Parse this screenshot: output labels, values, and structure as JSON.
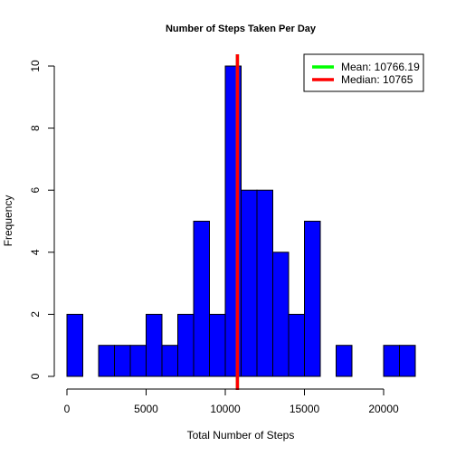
{
  "chart_data": {
    "type": "bar",
    "title": "Number of Steps Taken Per Day",
    "xlabel": "Total Number of Steps",
    "ylabel": "Frequency",
    "xlim": [
      0,
      22000
    ],
    "ylim": [
      0,
      10
    ],
    "bin_width": 1000,
    "bins": [
      {
        "start": 0,
        "end": 1000,
        "count": 2
      },
      {
        "start": 1000,
        "end": 2000,
        "count": 0
      },
      {
        "start": 2000,
        "end": 3000,
        "count": 1
      },
      {
        "start": 3000,
        "end": 4000,
        "count": 1
      },
      {
        "start": 4000,
        "end": 5000,
        "count": 1
      },
      {
        "start": 5000,
        "end": 6000,
        "count": 2
      },
      {
        "start": 6000,
        "end": 7000,
        "count": 1
      },
      {
        "start": 7000,
        "end": 8000,
        "count": 2
      },
      {
        "start": 8000,
        "end": 9000,
        "count": 5
      },
      {
        "start": 9000,
        "end": 10000,
        "count": 2
      },
      {
        "start": 10000,
        "end": 11000,
        "count": 10
      },
      {
        "start": 11000,
        "end": 12000,
        "count": 6
      },
      {
        "start": 12000,
        "end": 13000,
        "count": 6
      },
      {
        "start": 13000,
        "end": 14000,
        "count": 4
      },
      {
        "start": 14000,
        "end": 15000,
        "count": 2
      },
      {
        "start": 15000,
        "end": 16000,
        "count": 5
      },
      {
        "start": 16000,
        "end": 17000,
        "count": 0
      },
      {
        "start": 17000,
        "end": 18000,
        "count": 1
      },
      {
        "start": 18000,
        "end": 19000,
        "count": 0
      },
      {
        "start": 19000,
        "end": 20000,
        "count": 0
      },
      {
        "start": 20000,
        "end": 21000,
        "count": 1
      },
      {
        "start": 21000,
        "end": 22000,
        "count": 1
      }
    ],
    "x_ticks": [
      0,
      5000,
      10000,
      15000,
      20000
    ],
    "x_tick_labels": [
      "0",
      "5000",
      "10000",
      "15000",
      "20000"
    ],
    "y_ticks": [
      0,
      2,
      4,
      6,
      8,
      10
    ],
    "y_tick_labels": [
      "0",
      "2",
      "4",
      "6",
      "8",
      "10"
    ],
    "bar_color": "#0000ff",
    "bar_edge_color": "#000000",
    "vlines": [
      {
        "name": "Mean",
        "value": 10766.19,
        "color": "#00ff00"
      },
      {
        "name": "Median",
        "value": 10765,
        "color": "#ff0000"
      }
    ],
    "legend": {
      "placement": "top-right",
      "entries": [
        {
          "label": "Mean:  10766.19",
          "color": "#00ff00"
        },
        {
          "label": "Median:  10765",
          "color": "#ff0000"
        }
      ]
    },
    "grid": false
  }
}
